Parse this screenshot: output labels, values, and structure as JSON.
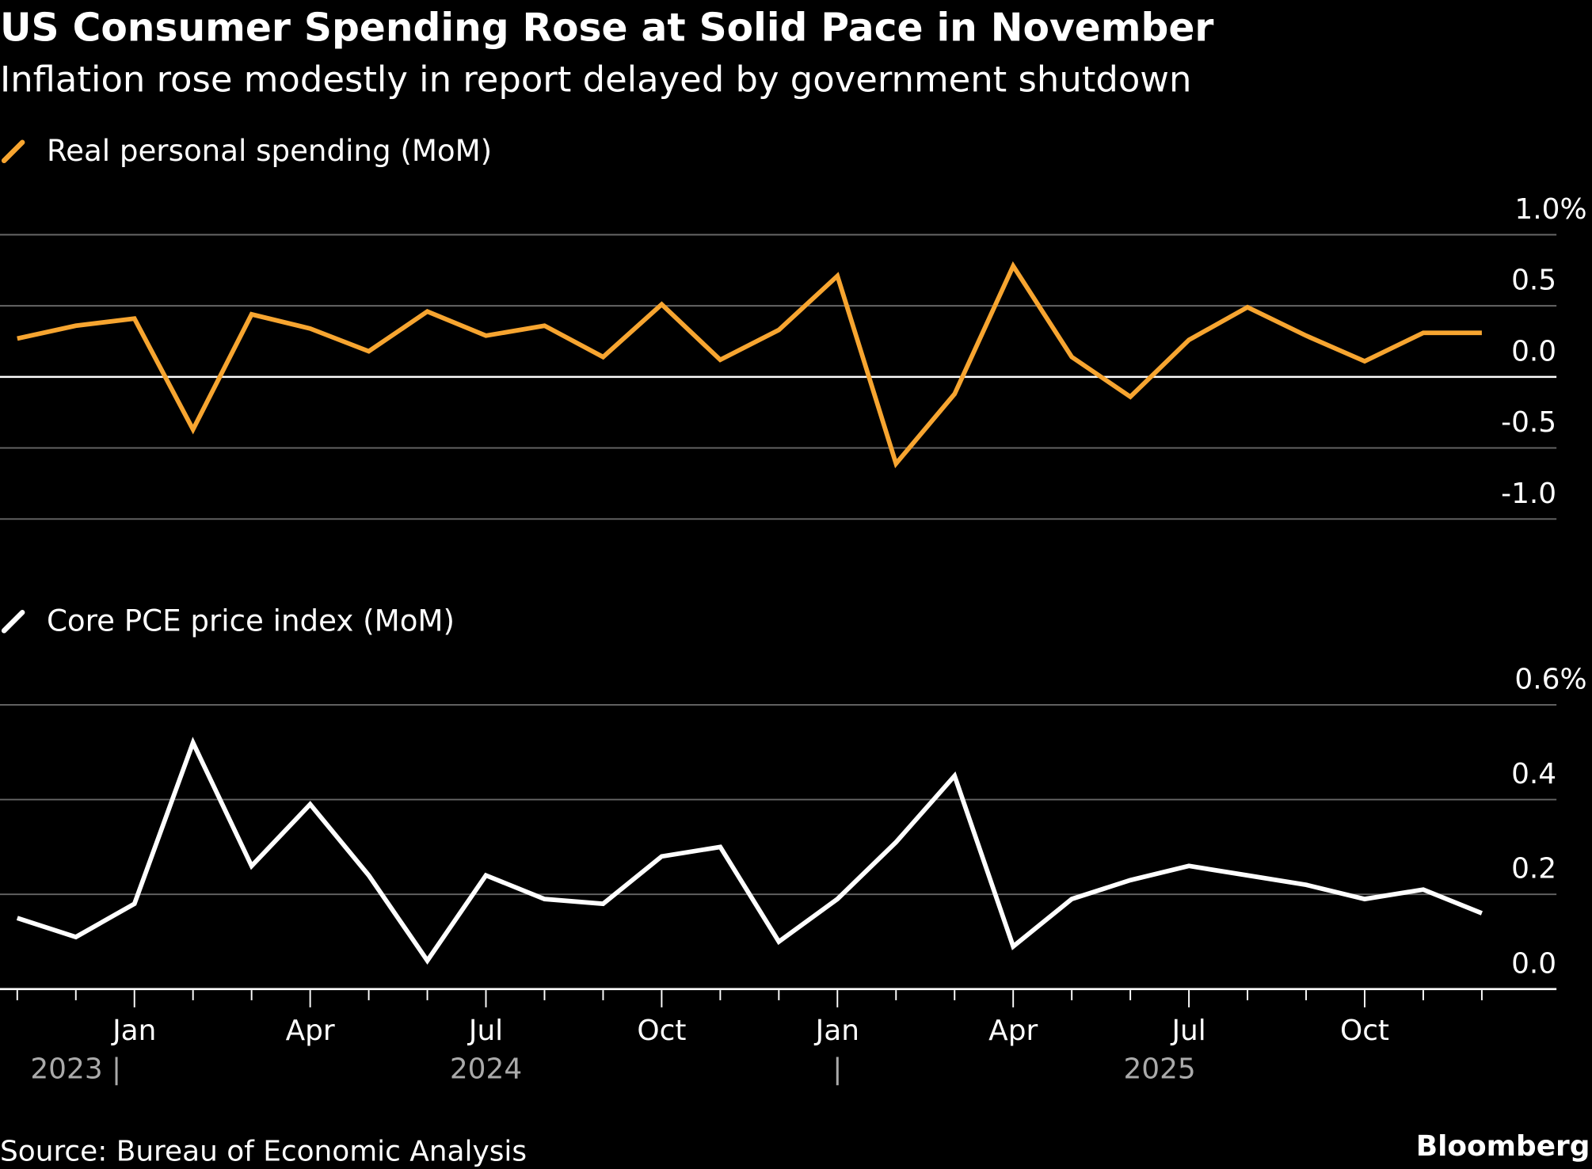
{
  "title": "US Consumer Spending Rose at Solid Pace in November",
  "subtitle": "Inflation rose modestly in report delayed by government shutdown",
  "source": "Source: Bureau of Economic Analysis",
  "brand": "Bloomberg",
  "chart_data": [
    {
      "type": "line",
      "name": "Real personal spending (MoM)",
      "color": "#f7a530",
      "x": [
        "Oct 2023",
        "Nov 2023",
        "Dec 2023",
        "Jan 2024",
        "Feb 2024",
        "Mar 2024",
        "Apr 2024",
        "May 2024",
        "Jun 2024",
        "Jul 2024",
        "Aug 2024",
        "Sep 2024",
        "Oct 2024",
        "Nov 2024",
        "Dec 2024",
        "Jan 2025",
        "Feb 2025",
        "Mar 2025",
        "Apr 2025",
        "May 2025",
        "Jun 2025",
        "Jul 2025",
        "Aug 2025",
        "Sep 2025",
        "Oct 2025",
        "Nov 2025"
      ],
      "values": [
        0.27,
        0.36,
        0.41,
        -0.37,
        0.44,
        0.34,
        0.18,
        0.46,
        0.29,
        0.36,
        0.14,
        0.51,
        0.12,
        0.33,
        0.71,
        -0.61,
        -0.12,
        0.78,
        0.14,
        -0.14,
        0.26,
        0.49,
        0.29,
        0.11,
        0.31,
        0.31
      ],
      "ylim": [
        -1.0,
        1.0
      ],
      "yticks": [
        1.0,
        0.5,
        0.0,
        -0.5,
        -1.0
      ],
      "ytick_labels": [
        "1.0%",
        "0.5",
        "0.0",
        "-0.5",
        "-1.0"
      ],
      "grid": true
    },
    {
      "type": "line",
      "name": "Core PCE price index (MoM)",
      "color": "#ffffff",
      "x": [
        "Oct 2023",
        "Nov 2023",
        "Dec 2023",
        "Jan 2024",
        "Feb 2024",
        "Mar 2024",
        "Apr 2024",
        "May 2024",
        "Jun 2024",
        "Jul 2024",
        "Aug 2024",
        "Sep 2024",
        "Oct 2024",
        "Nov 2024",
        "Dec 2024",
        "Jan 2025",
        "Feb 2025",
        "Mar 2025",
        "Apr 2025",
        "May 2025",
        "Jun 2025",
        "Jul 2025",
        "Aug 2025",
        "Sep 2025",
        "Oct 2025",
        "Nov 2025"
      ],
      "values": [
        0.15,
        0.11,
        0.18,
        0.52,
        0.26,
        0.39,
        0.24,
        0.06,
        0.24,
        0.19,
        0.18,
        0.28,
        0.3,
        0.1,
        0.19,
        0.31,
        0.45,
        0.09,
        0.19,
        0.23,
        0.26,
        0.24,
        0.22,
        0.19,
        0.21,
        0.16
      ],
      "ylim": [
        0.0,
        0.6
      ],
      "yticks": [
        0.6,
        0.4,
        0.2,
        0.0
      ],
      "ytick_labels": [
        "0.6%",
        "0.4",
        "0.2",
        "0.0"
      ],
      "grid": true
    }
  ],
  "xaxis": {
    "month_labels": [
      {
        "label": "Jan",
        "month_index": 2
      },
      {
        "label": "Apr",
        "month_index": 5
      },
      {
        "label": "Jul",
        "month_index": 8
      },
      {
        "label": "Oct",
        "month_index": 11
      },
      {
        "label": "Jan",
        "month_index": 14
      },
      {
        "label": "Apr",
        "month_index": 17
      },
      {
        "label": "Jul",
        "month_index": 20
      },
      {
        "label": "Oct",
        "month_index": 23
      }
    ],
    "year_labels": [
      {
        "label": "2023 |",
        "month_index": 1
      },
      {
        "label": "2024",
        "month_index": 8
      },
      {
        "label": "|",
        "month_index": 14
      },
      {
        "label": "2025",
        "month_index": 19.5
      }
    ]
  }
}
